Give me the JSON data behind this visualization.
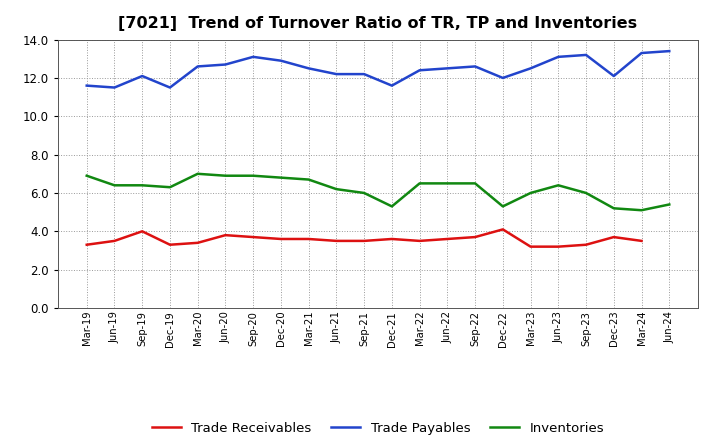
{
  "title": "[7021]  Trend of Turnover Ratio of TR, TP and Inventories",
  "labels": [
    "Mar-19",
    "Jun-19",
    "Sep-19",
    "Dec-19",
    "Mar-20",
    "Jun-20",
    "Sep-20",
    "Dec-20",
    "Mar-21",
    "Jun-21",
    "Sep-21",
    "Dec-21",
    "Mar-22",
    "Jun-22",
    "Sep-22",
    "Dec-22",
    "Mar-23",
    "Jun-23",
    "Sep-23",
    "Dec-23",
    "Mar-24",
    "Jun-24"
  ],
  "trade_receivables": [
    3.3,
    3.5,
    4.0,
    3.3,
    3.4,
    3.8,
    3.7,
    3.6,
    3.6,
    3.5,
    3.5,
    3.6,
    3.5,
    3.6,
    3.7,
    4.1,
    3.2,
    3.2,
    3.3,
    3.7,
    3.5,
    null
  ],
  "trade_payables": [
    11.6,
    11.5,
    12.1,
    11.5,
    12.6,
    12.7,
    13.1,
    12.9,
    12.5,
    12.2,
    12.2,
    11.6,
    12.4,
    12.5,
    12.6,
    12.0,
    12.5,
    13.1,
    13.2,
    12.1,
    13.3,
    13.4
  ],
  "inventories": [
    6.9,
    6.4,
    6.4,
    6.3,
    7.0,
    6.9,
    6.9,
    6.8,
    6.7,
    6.2,
    6.0,
    5.3,
    6.5,
    6.5,
    6.5,
    5.3,
    6.0,
    6.4,
    6.0,
    5.2,
    5.1,
    5.4
  ],
  "tr_color": "#dd1111",
  "tp_color": "#2244cc",
  "inv_color": "#118811",
  "ylim": [
    0.0,
    14.0
  ],
  "yticks": [
    0.0,
    2.0,
    4.0,
    6.0,
    8.0,
    10.0,
    12.0,
    14.0
  ],
  "background_color": "#ffffff",
  "grid_color": "#999999",
  "title_fontsize": 11.5,
  "legend_fontsize": 9.5,
  "line_width": 1.8
}
